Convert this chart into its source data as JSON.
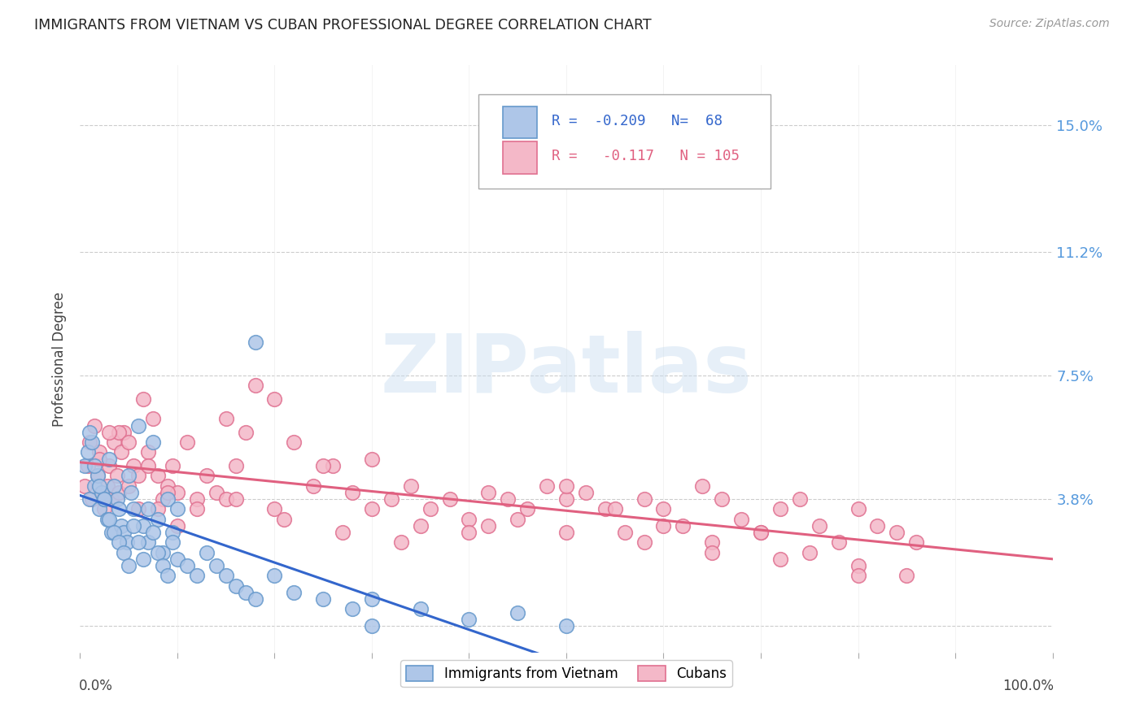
{
  "title": "IMMIGRANTS FROM VIETNAM VS CUBAN PROFESSIONAL DEGREE CORRELATION CHART",
  "source": "Source: ZipAtlas.com",
  "ylabel": "Professional Degree",
  "yticks": [
    0.0,
    0.038,
    0.075,
    0.112,
    0.15
  ],
  "ytick_labels": [
    "",
    "3.8%",
    "7.5%",
    "11.2%",
    "15.0%"
  ],
  "xmin": 0.0,
  "xmax": 1.0,
  "ymin": -0.008,
  "ymax": 0.168,
  "vietnam_color": "#aec6e8",
  "vietnam_edge": "#6699cc",
  "cuba_color": "#f4b8c8",
  "cuba_edge": "#e07090",
  "trendline_vietnam_color": "#3366cc",
  "trendline_cuba_color": "#e06080",
  "trendline_vietnam_dashed_color": "#99bbdd",
  "legend_R_vietnam": "-0.209",
  "legend_N_vietnam": "68",
  "legend_R_cuba": "-0.117",
  "legend_N_cuba": "105",
  "watermark": "ZIPatlas",
  "vietnam_scatter_x": [
    0.005,
    0.008,
    0.01,
    0.012,
    0.015,
    0.018,
    0.02,
    0.022,
    0.025,
    0.028,
    0.03,
    0.032,
    0.035,
    0.038,
    0.04,
    0.042,
    0.045,
    0.048,
    0.05,
    0.052,
    0.055,
    0.06,
    0.065,
    0.07,
    0.075,
    0.08,
    0.085,
    0.09,
    0.095,
    0.1,
    0.01,
    0.015,
    0.02,
    0.025,
    0.03,
    0.035,
    0.04,
    0.045,
    0.05,
    0.055,
    0.06,
    0.065,
    0.07,
    0.075,
    0.08,
    0.085,
    0.09,
    0.095,
    0.1,
    0.11,
    0.12,
    0.13,
    0.14,
    0.15,
    0.16,
    0.17,
    0.18,
    0.2,
    0.22,
    0.25,
    0.28,
    0.3,
    0.35,
    0.4,
    0.45,
    0.5,
    0.18,
    0.3
  ],
  "vietnam_scatter_y": [
    0.048,
    0.052,
    0.038,
    0.055,
    0.042,
    0.045,
    0.035,
    0.04,
    0.038,
    0.032,
    0.05,
    0.028,
    0.042,
    0.038,
    0.035,
    0.03,
    0.028,
    0.025,
    0.045,
    0.04,
    0.035,
    0.06,
    0.03,
    0.025,
    0.055,
    0.032,
    0.022,
    0.038,
    0.028,
    0.035,
    0.058,
    0.048,
    0.042,
    0.038,
    0.032,
    0.028,
    0.025,
    0.022,
    0.018,
    0.03,
    0.025,
    0.02,
    0.035,
    0.028,
    0.022,
    0.018,
    0.015,
    0.025,
    0.02,
    0.018,
    0.015,
    0.022,
    0.018,
    0.015,
    0.012,
    0.01,
    0.008,
    0.015,
    0.01,
    0.008,
    0.005,
    0.008,
    0.005,
    0.002,
    0.004,
    0.0,
    0.085,
    0.0
  ],
  "cuba_scatter_x": [
    0.005,
    0.008,
    0.01,
    0.012,
    0.015,
    0.018,
    0.02,
    0.022,
    0.025,
    0.028,
    0.03,
    0.032,
    0.035,
    0.038,
    0.04,
    0.042,
    0.045,
    0.05,
    0.055,
    0.06,
    0.065,
    0.07,
    0.075,
    0.08,
    0.085,
    0.09,
    0.095,
    0.1,
    0.11,
    0.12,
    0.13,
    0.14,
    0.15,
    0.16,
    0.17,
    0.18,
    0.2,
    0.22,
    0.24,
    0.26,
    0.28,
    0.3,
    0.32,
    0.34,
    0.36,
    0.38,
    0.4,
    0.42,
    0.44,
    0.46,
    0.48,
    0.5,
    0.52,
    0.54,
    0.56,
    0.58,
    0.6,
    0.62,
    0.64,
    0.66,
    0.68,
    0.7,
    0.72,
    0.74,
    0.76,
    0.78,
    0.8,
    0.82,
    0.84,
    0.86,
    0.02,
    0.04,
    0.06,
    0.08,
    0.1,
    0.15,
    0.2,
    0.25,
    0.3,
    0.35,
    0.4,
    0.45,
    0.5,
    0.55,
    0.6,
    0.65,
    0.7,
    0.75,
    0.8,
    0.85,
    0.03,
    0.05,
    0.07,
    0.09,
    0.12,
    0.16,
    0.21,
    0.27,
    0.33,
    0.42,
    0.5,
    0.58,
    0.65,
    0.72,
    0.8
  ],
  "cuba_scatter_y": [
    0.042,
    0.048,
    0.055,
    0.038,
    0.06,
    0.045,
    0.052,
    0.04,
    0.035,
    0.042,
    0.048,
    0.038,
    0.055,
    0.045,
    0.04,
    0.052,
    0.058,
    0.042,
    0.048,
    0.035,
    0.068,
    0.052,
    0.062,
    0.045,
    0.038,
    0.042,
    0.048,
    0.04,
    0.055,
    0.038,
    0.045,
    0.04,
    0.062,
    0.048,
    0.058,
    0.072,
    0.068,
    0.055,
    0.042,
    0.048,
    0.04,
    0.05,
    0.038,
    0.042,
    0.035,
    0.038,
    0.032,
    0.04,
    0.038,
    0.035,
    0.042,
    0.038,
    0.04,
    0.035,
    0.028,
    0.038,
    0.035,
    0.03,
    0.042,
    0.038,
    0.032,
    0.028,
    0.035,
    0.038,
    0.03,
    0.025,
    0.035,
    0.03,
    0.028,
    0.025,
    0.05,
    0.058,
    0.045,
    0.035,
    0.03,
    0.038,
    0.035,
    0.048,
    0.035,
    0.03,
    0.028,
    0.032,
    0.042,
    0.035,
    0.03,
    0.025,
    0.028,
    0.022,
    0.018,
    0.015,
    0.058,
    0.055,
    0.048,
    0.04,
    0.035,
    0.038,
    0.032,
    0.028,
    0.025,
    0.03,
    0.028,
    0.025,
    0.022,
    0.02,
    0.015
  ]
}
